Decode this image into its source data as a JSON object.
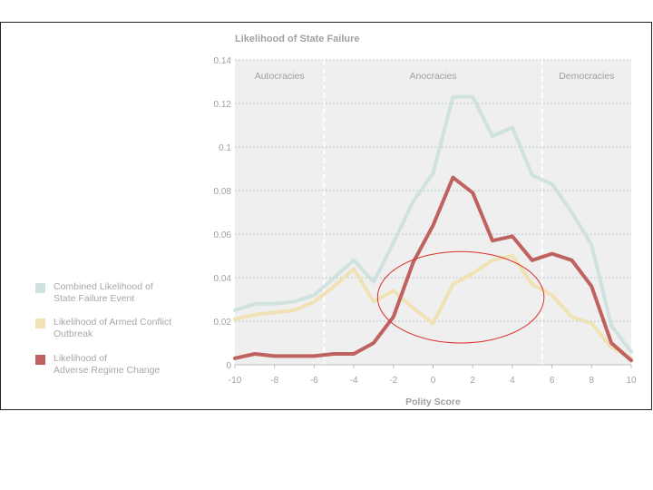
{
  "colors": {
    "combined": "#cfe2e0",
    "armed": "#f0e2b4",
    "adverse": "#bf625f",
    "plot_bg": "#efefef",
    "grid": "#a3bfc2",
    "axis_text": "#a0a0a0",
    "annotation": "#d9302e"
  },
  "chart_data": {
    "type": "line",
    "title": "Likelihood of State Failure",
    "xlabel": "Polity Score",
    "ylabel": "",
    "xlim": [
      -10,
      10
    ],
    "ylim": [
      0,
      0.14
    ],
    "x_ticks": [
      -10,
      -8,
      -6,
      -4,
      -2,
      0,
      2,
      4,
      6,
      8,
      10
    ],
    "x_tick_labels": [
      "-10",
      "-8",
      "-6",
      "-4",
      "-2",
      "0",
      "2",
      "4",
      "6",
      "8",
      "10"
    ],
    "y_ticks": [
      0,
      0.02,
      0.04,
      0.06,
      0.08,
      0.1,
      0.12,
      0.14
    ],
    "y_tick_labels": [
      "0",
      "0.02",
      "0.04",
      "0.06",
      "0.08",
      "0.1",
      "0.12",
      "0.14"
    ],
    "grid": true,
    "regions": [
      {
        "label": "Autocracies",
        "from": -10,
        "to": -5.5
      },
      {
        "label": "Anocracies",
        "from": -5.5,
        "to": 5.5
      },
      {
        "label": "Democracies",
        "from": 5.5,
        "to": 10
      }
    ],
    "x": [
      -10,
      -9,
      -8,
      -7,
      -6,
      -5,
      -4,
      -3,
      -2,
      -1,
      0,
      1,
      2,
      3,
      4,
      5,
      6,
      7,
      8,
      9,
      10
    ],
    "series": [
      {
        "name": "Combined Likelihood of State Failure Event",
        "color_key": "combined",
        "values": [
          0.025,
          0.028,
          0.028,
          0.029,
          0.032,
          0.04,
          0.048,
          0.038,
          0.056,
          0.075,
          0.088,
          0.123,
          0.123,
          0.105,
          0.109,
          0.087,
          0.083,
          0.07,
          0.055,
          0.018,
          0.006
        ]
      },
      {
        "name": "Likelihood of Armed Conflict Outbreak",
        "color_key": "armed",
        "values": [
          0.021,
          0.023,
          0.024,
          0.025,
          0.029,
          0.036,
          0.044,
          0.029,
          0.034,
          0.026,
          0.019,
          0.037,
          0.042,
          0.048,
          0.05,
          0.037,
          0.032,
          0.022,
          0.019,
          0.008,
          0.003
        ]
      },
      {
        "name": "Likelihood of Adverse Regime Change",
        "color_key": "adverse",
        "values": [
          0.003,
          0.005,
          0.004,
          0.004,
          0.004,
          0.005,
          0.005,
          0.01,
          0.022,
          0.047,
          0.064,
          0.086,
          0.079,
          0.057,
          0.059,
          0.048,
          0.051,
          0.048,
          0.036,
          0.01,
          0.002
        ]
      }
    ],
    "annotation": {
      "shape": "ellipse",
      "cx": 1.4,
      "cy": 0.031,
      "rx": 4.2,
      "ry": 0.021
    }
  },
  "legend": [
    {
      "line1": "Combined Likelihood of",
      "line2": "State Failure Event",
      "color_key": "combined"
    },
    {
      "line1": "Likelihood of Armed Conflict",
      "line2": "Outbreak",
      "color_key": "armed"
    },
    {
      "line1": "Likelihood of",
      "line2": "Adverse Regime Change",
      "color_key": "adverse"
    }
  ]
}
